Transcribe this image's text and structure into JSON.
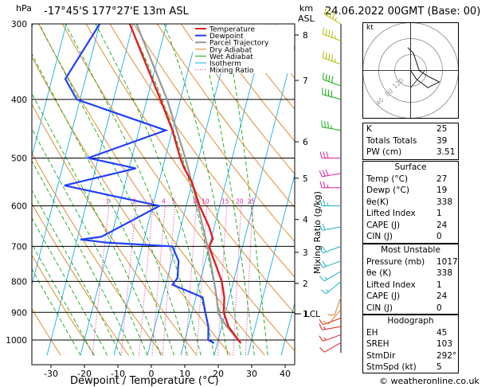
{
  "header": {
    "location": "-17°45'S 177°27'E 13m ASL",
    "datetime": "24.06.2022 00GMT (Base: 00)",
    "hpa_label": "hPa",
    "km_label": "km",
    "asl_label": "ASL"
  },
  "chart_data": {
    "type": "skew-t",
    "xlabel": "Dewpoint / Temperature (°C)",
    "ylabel_right": "Mixing Ratio (g/kg)",
    "x_ticks": [
      -30,
      -20,
      -10,
      0,
      10,
      20,
      30,
      40
    ],
    "p_ticks": [
      300,
      400,
      500,
      600,
      700,
      800,
      900,
      1000
    ],
    "km_ticks": [
      {
        "p": 313,
        "km": "8"
      },
      {
        "p": 372,
        "km": "7"
      },
      {
        "p": 470,
        "km": "6"
      },
      {
        "p": 540,
        "km": "5"
      },
      {
        "p": 632,
        "km": "4"
      },
      {
        "p": 716,
        "km": "3"
      },
      {
        "p": 806,
        "km": "2"
      },
      {
        "p": 905,
        "km": "1"
      }
    ],
    "lcl": {
      "p": 905,
      "label": "LCL"
    },
    "mixing_ratio_labels": [
      "1",
      "2",
      "3",
      "4",
      "5",
      "8",
      "10",
      "15",
      "20",
      "25"
    ],
    "mixing_ratio_values": [
      1,
      2,
      3,
      4,
      5,
      8,
      10,
      15,
      20,
      25
    ],
    "legend": [
      "Temperature",
      "Dewpoint",
      "Parcel Trajectory",
      "Dry Adiabat",
      "Wet Adiabat",
      "Isotherm",
      "Mixing Ratio"
    ],
    "colors": {
      "temperature": "#e02020",
      "dewpoint": "#1f3fff",
      "parcel": "#999999",
      "dry": "#e08020",
      "wet": "#11aa11",
      "iso": "#19aeea",
      "mixing": "#e020a0"
    },
    "temperature": [
      {
        "p": 1012,
        "t": 27
      },
      {
        "p": 1000,
        "t": 26
      },
      {
        "p": 950,
        "t": 22
      },
      {
        "p": 900,
        "t": 19.5
      },
      {
        "p": 850,
        "t": 18.5
      },
      {
        "p": 800,
        "t": 16.5
      },
      {
        "p": 760,
        "t": 14
      },
      {
        "p": 730,
        "t": 12
      },
      {
        "p": 700,
        "t": 10
      },
      {
        "p": 680,
        "t": 10.5
      },
      {
        "p": 650,
        "t": 8.5
      },
      {
        "p": 600,
        "t": 4
      },
      {
        "p": 550,
        "t": 0
      },
      {
        "p": 520,
        "t": -3.5
      },
      {
        "p": 500,
        "t": -5.5
      },
      {
        "p": 450,
        "t": -10
      },
      {
        "p": 400,
        "t": -16
      },
      {
        "p": 350,
        "t": -23
      },
      {
        "p": 300,
        "t": -31
      }
    ],
    "dewpoint": [
      {
        "p": 1012,
        "t": 19
      },
      {
        "p": 1000,
        "t": 17
      },
      {
        "p": 950,
        "t": 16
      },
      {
        "p": 900,
        "t": 14
      },
      {
        "p": 850,
        "t": 12
      },
      {
        "p": 810,
        "t": 2
      },
      {
        "p": 790,
        "t": 3
      },
      {
        "p": 740,
        "t": 2
      },
      {
        "p": 700,
        "t": -1
      },
      {
        "p": 690,
        "t": -21
      },
      {
        "p": 682,
        "t": -29
      },
      {
        "p": 675,
        "t": -23
      },
      {
        "p": 600,
        "t": -8
      },
      {
        "p": 555,
        "t": -38
      },
      {
        "p": 520,
        "t": -18
      },
      {
        "p": 500,
        "t": -33
      },
      {
        "p": 450,
        "t": -12
      },
      {
        "p": 400,
        "t": -41
      },
      {
        "p": 370,
        "t": -46
      },
      {
        "p": 300,
        "t": -40
      }
    ],
    "parcel": [
      {
        "p": 1012,
        "t": 27
      },
      {
        "p": 950,
        "t": 21.5
      },
      {
        "p": 905,
        "t": 18
      },
      {
        "p": 850,
        "t": 16.2
      },
      {
        "p": 800,
        "t": 14.2
      },
      {
        "p": 700,
        "t": 9.5
      },
      {
        "p": 600,
        "t": 3.5
      },
      {
        "p": 500,
        "t": -4
      },
      {
        "p": 400,
        "t": -14
      },
      {
        "p": 300,
        "t": -29
      }
    ],
    "winds": [
      {
        "p": 1010,
        "dir": 240,
        "spd": 10
      },
      {
        "p": 980,
        "dir": 250,
        "spd": 15
      },
      {
        "p": 950,
        "dir": 260,
        "spd": 15
      },
      {
        "p": 920,
        "dir": 250,
        "spd": 10
      },
      {
        "p": 890,
        "dir": 220,
        "spd": 10
      },
      {
        "p": 850,
        "dir": 200,
        "spd": 10
      },
      {
        "p": 800,
        "dir": 230,
        "spd": 15
      },
      {
        "p": 770,
        "dir": 240,
        "spd": 15
      },
      {
        "p": 740,
        "dir": 250,
        "spd": 20
      },
      {
        "p": 700,
        "dir": 250,
        "spd": 20
      },
      {
        "p": 650,
        "dir": 260,
        "spd": 20
      },
      {
        "p": 600,
        "dir": 270,
        "spd": 25
      },
      {
        "p": 560,
        "dir": 270,
        "spd": 25
      },
      {
        "p": 530,
        "dir": 260,
        "spd": 30
      },
      {
        "p": 500,
        "dir": 270,
        "spd": 30
      },
      {
        "p": 450,
        "dir": 280,
        "spd": 35
      },
      {
        "p": 400,
        "dir": 285,
        "spd": 40
      },
      {
        "p": 380,
        "dir": 290,
        "spd": 40
      },
      {
        "p": 350,
        "dir": 290,
        "spd": 45
      },
      {
        "p": 320,
        "dir": 290,
        "spd": 45
      },
      {
        "p": 300,
        "dir": 300,
        "spd": 45
      }
    ]
  },
  "hodograph": {
    "unit": "kt",
    "ring_labels": [
      "40",
      "80",
      "120"
    ],
    "trace": [
      {
        "u": 0,
        "v": 0
      },
      {
        "u": 2,
        "v": -3
      },
      {
        "u": 6,
        "v": -6
      },
      {
        "u": 10,
        "v": -4
      },
      {
        "u": 6,
        "v": -2
      },
      {
        "u": 3,
        "v": 0
      },
      {
        "u": 1,
        "v": 6
      },
      {
        "u": -1,
        "v": 8
      }
    ],
    "storm_motion": [
      {
        "u": 0,
        "v": -6
      },
      {
        "u": 5,
        "v": 0
      }
    ],
    "color": "#111111"
  },
  "indices": [
    {
      "k": "K",
      "v": "25"
    },
    {
      "k": "Totals Totals",
      "v": "39"
    },
    {
      "k": "PW (cm)",
      "v": "3.51"
    }
  ],
  "surface": {
    "title": "Surface",
    "rows": [
      {
        "k": "Temp (°C)",
        "v": "27"
      },
      {
        "k": "Dewp (°C)",
        "v": "19"
      },
      {
        "k": "θe(K)",
        "v": "338"
      },
      {
        "k": "Lifted Index",
        "v": "1"
      },
      {
        "k": "CAPE (J)",
        "v": "24"
      },
      {
        "k": "CIN (J)",
        "v": "0"
      }
    ]
  },
  "most_unstable": {
    "title": "Most Unstable",
    "rows": [
      {
        "k": "Pressure (mb)",
        "v": "1017"
      },
      {
        "k": "θe (K)",
        "v": "338"
      },
      {
        "k": "Lifted Index",
        "v": "1"
      },
      {
        "k": "CAPE (J)",
        "v": "24"
      },
      {
        "k": "CIN (J)",
        "v": "0"
      }
    ]
  },
  "hodograph_table": {
    "title": "Hodograph",
    "rows": [
      {
        "k": "EH",
        "v": "45"
      },
      {
        "k": "SREH",
        "v": "103"
      },
      {
        "k": "StmDir",
        "v": "292°"
      },
      {
        "k": "StmSpd (kt)",
        "v": "5"
      }
    ]
  },
  "footer": {
    "credit": "© weatheronline.co.uk"
  }
}
